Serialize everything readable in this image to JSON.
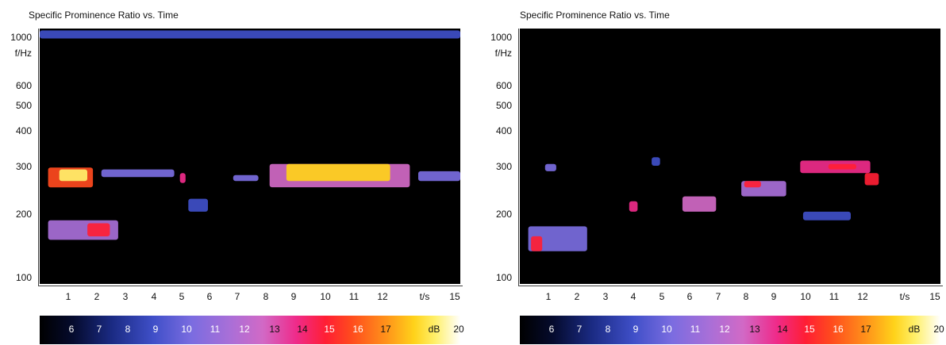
{
  "charts": [
    {
      "title": "Specific Prominence Ratio vs. Time",
      "y_unit_label": "f/Hz",
      "x_unit_label": "t/s",
      "y_ticks": [
        "1000",
        "600",
        "500",
        "400",
        "300",
        "200",
        "100"
      ],
      "x_ticks": [
        "1",
        "2",
        "3",
        "4",
        "5",
        "6",
        "7",
        "8",
        "9",
        "10",
        "11",
        "12",
        "15"
      ],
      "colorbar_ticks": [
        "6",
        "7",
        "8",
        "9",
        "10",
        "11",
        "12",
        "13",
        "14",
        "15",
        "16",
        "17",
        "20"
      ],
      "colorbar_unit": "dB"
    },
    {
      "title": "Specific Prominence Ratio vs. Time",
      "y_unit_label": "f/Hz",
      "x_unit_label": "t/s",
      "y_ticks": [
        "1000",
        "600",
        "500",
        "400",
        "300",
        "200",
        "100"
      ],
      "x_ticks": [
        "1",
        "2",
        "3",
        "4",
        "5",
        "6",
        "7",
        "8",
        "9",
        "10",
        "11",
        "12",
        "15"
      ],
      "colorbar_ticks": [
        "6",
        "7",
        "8",
        "9",
        "10",
        "11",
        "12",
        "13",
        "14",
        "15",
        "16",
        "17",
        "20"
      ],
      "colorbar_unit": "dB"
    }
  ],
  "chart_data": [
    {
      "type": "heatmap",
      "title": "Specific Prominence Ratio vs. Time",
      "xlabel": "t/s",
      "ylabel": "f/Hz",
      "xlim": [
        0,
        15
      ],
      "ylim": [
        95,
        1100
      ],
      "y_scale": "log",
      "colorbar": {
        "unit": "dB",
        "range": [
          5,
          20
        ]
      },
      "regions": [
        {
          "t": [
            0.3,
            1.9
          ],
          "f": [
            240,
            290
          ],
          "level_db": 14
        },
        {
          "t": [
            0.7,
            1.7
          ],
          "f": [
            255,
            285
          ],
          "level_db": 17
        },
        {
          "t": [
            2.2,
            4.8
          ],
          "f": [
            265,
            285
          ],
          "level_db": 9
        },
        {
          "t": [
            5.0,
            5.2
          ],
          "f": [
            250,
            275
          ],
          "level_db": 12
        },
        {
          "t": [
            5.3,
            6.0
          ],
          "f": [
            190,
            215
          ],
          "level_db": 8
        },
        {
          "t": [
            6.9,
            7.8
          ],
          "f": [
            255,
            270
          ],
          "level_db": 9
        },
        {
          "t": [
            8.2,
            13.2
          ],
          "f": [
            240,
            300
          ],
          "level_db": 11
        },
        {
          "t": [
            8.8,
            12.5
          ],
          "f": [
            255,
            300
          ],
          "level_db": 16
        },
        {
          "t": [
            13.5,
            15.0
          ],
          "f": [
            255,
            280
          ],
          "level_db": 9
        },
        {
          "t": [
            0.3,
            2.8
          ],
          "f": [
            145,
            175
          ],
          "level_db": 10
        },
        {
          "t": [
            1.7,
            2.5
          ],
          "f": [
            150,
            170
          ],
          "level_db": 13
        },
        {
          "t": [
            0.0,
            15.0
          ],
          "f": [
            1000,
            1080
          ],
          "level_db": 8
        }
      ]
    },
    {
      "type": "heatmap",
      "title": "Specific Prominence Ratio vs. Time",
      "xlabel": "t/s",
      "ylabel": "f/Hz",
      "xlim": [
        0,
        15
      ],
      "ylim": [
        95,
        1100
      ],
      "y_scale": "log",
      "colorbar": {
        "unit": "dB",
        "range": [
          5,
          20
        ]
      },
      "regions": [
        {
          "t": [
            0.3,
            2.4
          ],
          "f": [
            130,
            165
          ],
          "level_db": 9
        },
        {
          "t": [
            0.4,
            0.8
          ],
          "f": [
            130,
            150
          ],
          "level_db": 13
        },
        {
          "t": [
            0.9,
            1.3
          ],
          "f": [
            280,
            300
          ],
          "level_db": 9
        },
        {
          "t": [
            3.9,
            4.2
          ],
          "f": [
            190,
            210
          ],
          "level_db": 12
        },
        {
          "t": [
            4.7,
            5.0
          ],
          "f": [
            295,
            320
          ],
          "level_db": 8
        },
        {
          "t": [
            5.8,
            7.0
          ],
          "f": [
            190,
            220
          ],
          "level_db": 11
        },
        {
          "t": [
            7.9,
            9.5
          ],
          "f": [
            220,
            255
          ],
          "level_db": 10
        },
        {
          "t": [
            8.0,
            8.6
          ],
          "f": [
            240,
            255
          ],
          "level_db": 13
        },
        {
          "t": [
            10.0,
            12.5
          ],
          "f": [
            275,
            310
          ],
          "level_db": 12
        },
        {
          "t": [
            11.0,
            12.0
          ],
          "f": [
            285,
            300
          ],
          "level_db": 13
        },
        {
          "t": [
            12.3,
            12.8
          ],
          "f": [
            245,
            275
          ],
          "level_db": 13
        },
        {
          "t": [
            10.1,
            11.8
          ],
          "f": [
            175,
            190
          ],
          "level_db": 8
        }
      ]
    }
  ]
}
